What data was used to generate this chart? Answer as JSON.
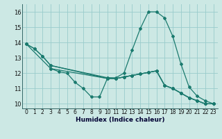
{
  "xlabel": "Humidex (Indice chaleur)",
  "bg_color": "#cce8e4",
  "grid_color": "#99cccc",
  "line_color": "#1a7a6e",
  "xlim": [
    -0.5,
    23.5
  ],
  "ylim": [
    9.7,
    16.5
  ],
  "xticks": [
    0,
    1,
    2,
    3,
    4,
    5,
    6,
    7,
    8,
    9,
    10,
    11,
    12,
    13,
    14,
    15,
    16,
    17,
    18,
    19,
    20,
    21,
    22,
    23
  ],
  "yticks": [
    10,
    11,
    12,
    13,
    14,
    15,
    16
  ],
  "series": [
    {
      "x": [
        0,
        1,
        2,
        3,
        10,
        11,
        12,
        13,
        14,
        15,
        16,
        17,
        18,
        19,
        20,
        21,
        22,
        23
      ],
      "y": [
        13.9,
        13.6,
        13.1,
        12.5,
        11.7,
        11.7,
        12.0,
        13.5,
        14.9,
        16.0,
        16.0,
        15.6,
        14.4,
        12.6,
        11.1,
        10.5,
        10.2,
        10.0
      ]
    },
    {
      "x": [
        3,
        4,
        5,
        6,
        7,
        8,
        9,
        10,
        11,
        12,
        13,
        14,
        15,
        16,
        17,
        18,
        19,
        20,
        21,
        22,
        23
      ],
      "y": [
        12.3,
        12.1,
        12.0,
        11.4,
        11.0,
        10.45,
        10.45,
        11.7,
        11.65,
        11.75,
        11.85,
        11.95,
        12.05,
        12.15,
        11.2,
        11.0,
        10.7,
        10.4,
        10.2,
        10.0,
        10.0
      ]
    },
    {
      "x": [
        0,
        3,
        10,
        11,
        12,
        13,
        14,
        15,
        16,
        17,
        18,
        19,
        20,
        21,
        22,
        23
      ],
      "y": [
        13.9,
        12.3,
        11.65,
        11.65,
        11.75,
        11.85,
        11.95,
        12.05,
        12.15,
        11.2,
        11.0,
        10.7,
        10.4,
        10.2,
        10.0,
        10.0
      ]
    },
    {
      "x": [
        0,
        1,
        2,
        3,
        10,
        11,
        12,
        13,
        14,
        15,
        16,
        17,
        18,
        19,
        20,
        21,
        22,
        23
      ],
      "y": [
        13.9,
        13.6,
        13.1,
        12.5,
        11.65,
        11.65,
        11.75,
        11.85,
        11.95,
        12.05,
        12.15,
        11.2,
        11.0,
        10.7,
        10.4,
        10.2,
        10.0,
        10.0
      ]
    }
  ]
}
